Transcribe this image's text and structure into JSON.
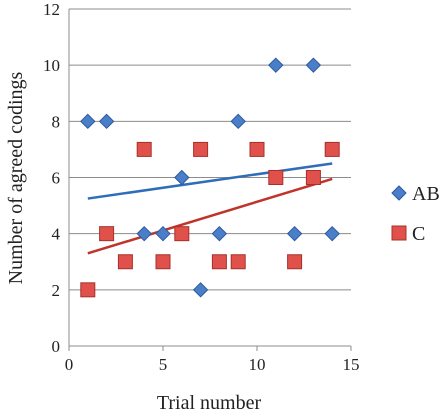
{
  "chart_data": {
    "type": "scatter",
    "xlabel": "Trial number",
    "ylabel": "Number of agreed codings",
    "xlim": [
      0,
      15
    ],
    "ylim": [
      0,
      12
    ],
    "xticks": [
      0,
      5,
      10,
      15
    ],
    "yticks": [
      0,
      2,
      4,
      6,
      8,
      10,
      12
    ],
    "grid": "horizontal",
    "legend_position": "right",
    "series": [
      {
        "name": "AB",
        "marker": "diamond",
        "color": "#4a7ec9",
        "trendline_color": "#2f6db8",
        "points": [
          [
            1,
            8
          ],
          [
            2,
            8
          ],
          [
            4,
            4
          ],
          [
            5,
            4
          ],
          [
            6,
            6
          ],
          [
            7,
            2
          ],
          [
            8,
            4
          ],
          [
            9,
            8
          ],
          [
            11,
            10
          ],
          [
            12,
            4
          ],
          [
            13,
            10
          ],
          [
            14,
            4
          ]
        ],
        "trendline": [
          [
            1,
            5.25
          ],
          [
            14,
            6.5
          ]
        ]
      },
      {
        "name": "C",
        "marker": "square",
        "color": "#e0514b",
        "trendline_color": "#c0342c",
        "points": [
          [
            1,
            2
          ],
          [
            2,
            4
          ],
          [
            3,
            3
          ],
          [
            4,
            7
          ],
          [
            5,
            3
          ],
          [
            6,
            4
          ],
          [
            7,
            7
          ],
          [
            8,
            3
          ],
          [
            9,
            3
          ],
          [
            10,
            7
          ],
          [
            11,
            6
          ],
          [
            12,
            3
          ],
          [
            13,
            6
          ],
          [
            14,
            7
          ]
        ],
        "trendline": [
          [
            1,
            3.3
          ],
          [
            14,
            5.95
          ]
        ]
      }
    ]
  }
}
